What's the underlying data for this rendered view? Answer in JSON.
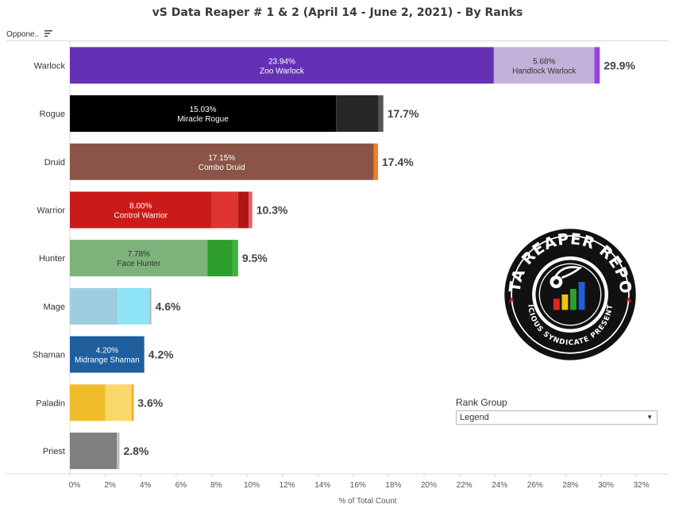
{
  "title": "vS Data Reaper #  1 & 2 (April 14 - June 2, 2021) - By Ranks",
  "filter": {
    "label": "Oppone.."
  },
  "rank_group": {
    "title": "Rank Group",
    "selected": "Legend"
  },
  "logo": {
    "text_top": "DATA REAPER REPORT",
    "text_bottom": "VICIOUS SYNDICATE PRESENTS"
  },
  "colors": {
    "label_text": "#333333",
    "grid": "#e6e6e6"
  },
  "chart_data": {
    "type": "bar",
    "orientation": "horizontal",
    "stacked": true,
    "title": "vS Data Reaper #  1 & 2 (April 14 - June 2, 2021) - By Ranks",
    "xlabel": "% of Total Count",
    "xlim": [
      0,
      33
    ],
    "xticks": [
      "0%",
      "2%",
      "4%",
      "6%",
      "8%",
      "10%",
      "12%",
      "14%",
      "16%",
      "18%",
      "20%",
      "22%",
      "24%",
      "26%",
      "28%",
      "30%",
      "32%"
    ],
    "categories": [
      {
        "name": "Warlock",
        "total_label": "29.9%",
        "segments": [
          {
            "value": 23.94,
            "color": "#6431b5",
            "label_pct": "23.94%",
            "label_name": "Zoo Warlock",
            "text_color": "#ffffff"
          },
          {
            "value": 5.68,
            "color": "#c2b1d9",
            "label_pct": "5.68%",
            "label_name": "Handlock Warlock",
            "text_color": "#333333"
          },
          {
            "value": 0.3,
            "color": "#9b3fe8"
          }
        ]
      },
      {
        "name": "Rogue",
        "total_label": "17.7%",
        "segments": [
          {
            "value": 15.03,
            "color": "#000000",
            "label_pct": "15.03%",
            "label_name": "Miracle Rogue",
            "text_color": "#ffffff"
          },
          {
            "value": 2.4,
            "color": "#262626"
          },
          {
            "value": 0.27,
            "color": "#555555"
          }
        ]
      },
      {
        "name": "Druid",
        "total_label": "17.4%",
        "segments": [
          {
            "value": 17.15,
            "color": "#8a5548",
            "label_pct": "17.15%",
            "label_name": "Combo Druid",
            "text_color": "#ffffff"
          },
          {
            "value": 0.25,
            "color": "#f07f23"
          }
        ]
      },
      {
        "name": "Warrior",
        "total_label": "10.3%",
        "segments": [
          {
            "value": 8.0,
            "color": "#cb1a1a",
            "label_pct": "8.00%",
            "label_name": "Control Warrior",
            "text_color": "#ffffff"
          },
          {
            "value": 1.5,
            "color": "#e03333"
          },
          {
            "value": 0.6,
            "color": "#b01515"
          },
          {
            "value": 0.2,
            "color": "#e26161"
          }
        ]
      },
      {
        "name": "Hunter",
        "total_label": "9.5%",
        "segments": [
          {
            "value": 7.78,
            "color": "#7db37a",
            "label_pct": "7.78%",
            "label_name": "Face Hunter",
            "text_color": "#333333"
          },
          {
            "value": 1.42,
            "color": "#2e9e2e"
          },
          {
            "value": 0.3,
            "color": "#3eb13e"
          }
        ]
      },
      {
        "name": "Mage",
        "total_label": "4.6%",
        "segments": [
          {
            "value": 2.7,
            "color": "#9ccee0"
          },
          {
            "value": 1.8,
            "color": "#8fe3f6"
          },
          {
            "value": 0.1,
            "color": "#b6b6b6"
          }
        ]
      },
      {
        "name": "Shaman",
        "total_label": "4.2%",
        "segments": [
          {
            "value": 4.2,
            "color": "#1f5f9e",
            "label_pct": "4.20%",
            "label_name": "Midrange Shaman",
            "text_color": "#ffffff"
          }
        ]
      },
      {
        "name": "Paladin",
        "total_label": "3.6%",
        "segments": [
          {
            "value": 2.0,
            "color": "#f0bd2a"
          },
          {
            "value": 1.5,
            "color": "#fad76a"
          },
          {
            "value": 0.1,
            "color": "#e8a818"
          }
        ]
      },
      {
        "name": "Priest",
        "total_label": "2.8%",
        "segments": [
          {
            "value": 2.65,
            "color": "#808080"
          },
          {
            "value": 0.15,
            "color": "#bdbdbd"
          }
        ]
      }
    ]
  }
}
